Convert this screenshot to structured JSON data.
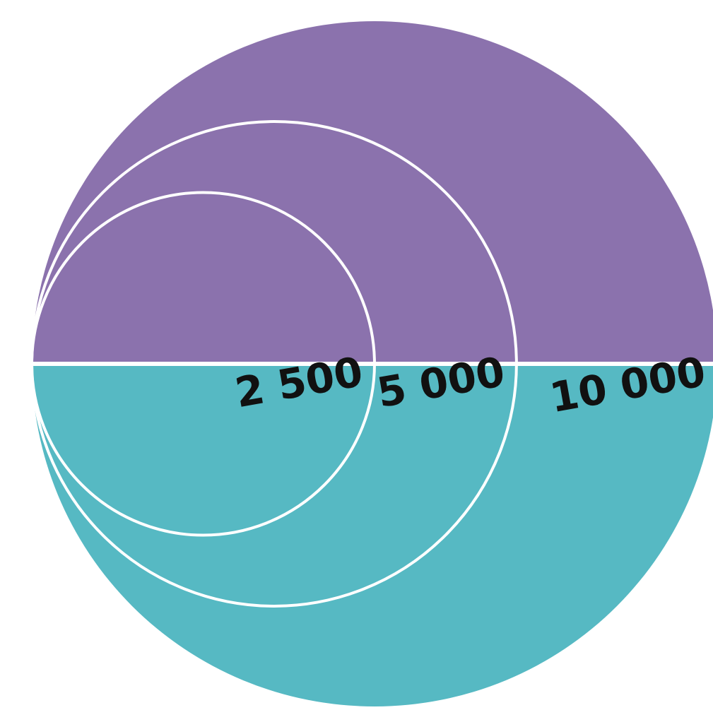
{
  "chart_data": {
    "type": "nested-bubble-split",
    "title": "",
    "subtitle": "",
    "colors": {
      "upper": "#8b72ad",
      "lower": "#56b9c3",
      "outline": "#ffffff"
    },
    "values": [
      {
        "value": 10000,
        "label": "10 000"
      },
      {
        "value": 5000,
        "label": "5 000"
      },
      {
        "value": 2500,
        "label": "2 500"
      }
    ]
  }
}
